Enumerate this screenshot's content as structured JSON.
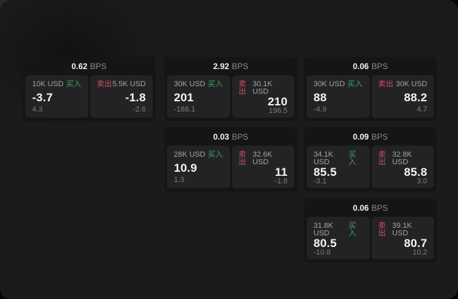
{
  "labels": {
    "bps_unit": "BPS",
    "buy": "买入",
    "sell": "卖出"
  },
  "colors": {
    "window_bg": "#1b1b1d",
    "card_bg": "#151516",
    "panel_bg": "#232325",
    "buy_green": "#3fa468",
    "sell_red": "#d14f63",
    "value_white": "#f5f5f5",
    "label_gray": "#a4a4a6",
    "sub_gray": "#7b7b7d"
  },
  "cards": [
    {
      "bps": "0.62",
      "buy": {
        "amount": "10K USD",
        "value": "-3.7",
        "sub": "4.3"
      },
      "sell": {
        "amount": "5.5K USD",
        "value": "-1.8",
        "sub": "-2.6"
      }
    },
    {
      "bps": "2.92",
      "buy": {
        "amount": "30K USD",
        "value": "201",
        "sub": "-188.1"
      },
      "sell": {
        "amount": "30.1K USD",
        "value": "210",
        "sub": "196.5"
      }
    },
    {
      "bps": "0.06",
      "buy": {
        "amount": "30K USD",
        "value": "88",
        "sub": "-4.9"
      },
      "sell": {
        "amount": "30K USD",
        "value": "88.2",
        "sub": "4.7"
      }
    },
    {
      "bps": "0.03",
      "buy": {
        "amount": "28K USD",
        "value": "10.9",
        "sub": "1.3"
      },
      "sell": {
        "amount": "32.6K USD",
        "value": "11",
        "sub": "-1.8"
      }
    },
    {
      "bps": "0.09",
      "buy": {
        "amount": "34.1K USD",
        "value": "85.5",
        "sub": "-3.1"
      },
      "sell": {
        "amount": "32.8K USD",
        "value": "85.8",
        "sub": "3.0"
      }
    },
    {
      "bps": "0.06",
      "buy": {
        "amount": "31.8K USD",
        "value": "80.5",
        "sub": "-10.8"
      },
      "sell": {
        "amount": "39.1K USD",
        "value": "80.7",
        "sub": "10.2"
      }
    }
  ]
}
